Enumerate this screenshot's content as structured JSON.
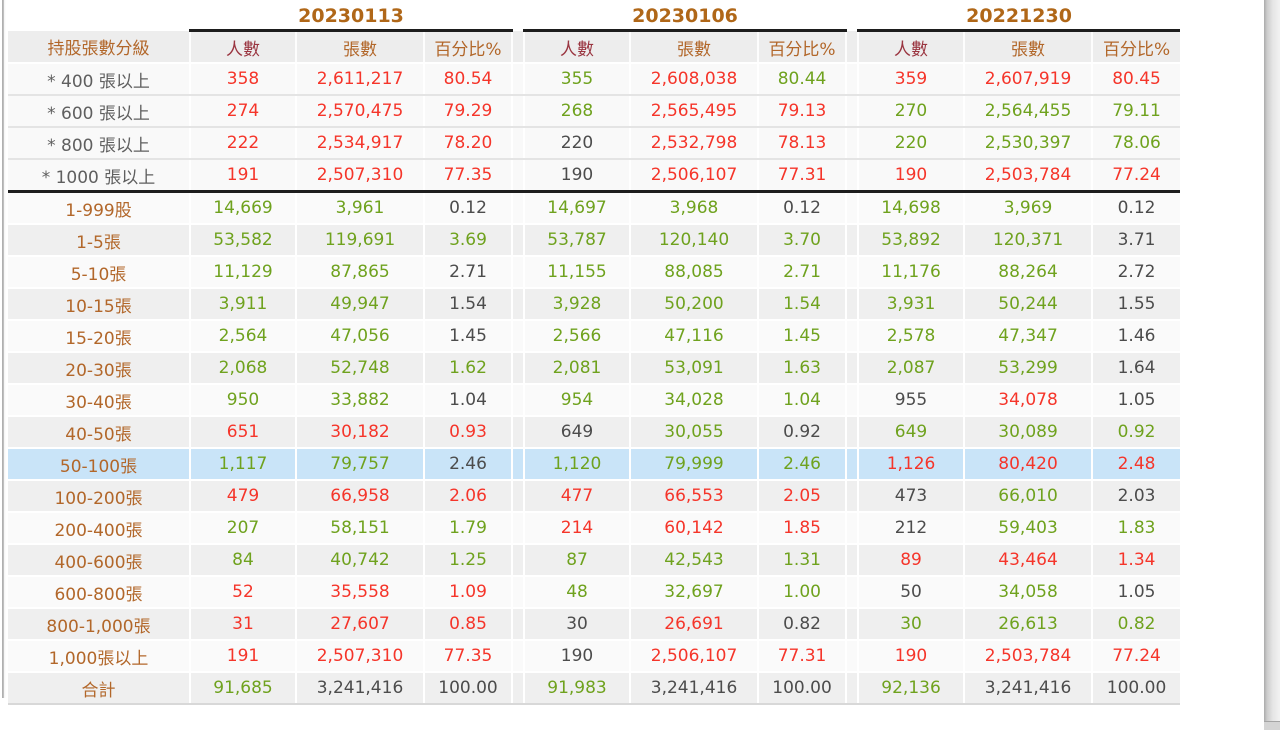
{
  "table": {
    "corner_label": "持股張數分級",
    "date_groups": [
      "20230113",
      "20230106",
      "20221230"
    ],
    "col_headers": [
      "人數",
      "張數",
      "百分比%"
    ],
    "highlighted_row": "50-100張",
    "rows": [
      {
        "label": "* 400 張以上",
        "lc": "gray",
        "bg": "top",
        "cells": [
          [
            "358",
            "r"
          ],
          [
            "2,611,217",
            "r"
          ],
          [
            "80.54",
            "r"
          ],
          [
            "355",
            "g"
          ],
          [
            "2,608,038",
            "r"
          ],
          [
            "80.44",
            "g"
          ],
          [
            "359",
            "r"
          ],
          [
            "2,607,919",
            "r"
          ],
          [
            "80.45",
            "r"
          ]
        ]
      },
      {
        "label": "* 600 張以上",
        "lc": "gray",
        "bg": "top",
        "cells": [
          [
            "274",
            "r"
          ],
          [
            "2,570,475",
            "r"
          ],
          [
            "79.29",
            "r"
          ],
          [
            "268",
            "g"
          ],
          [
            "2,565,495",
            "r"
          ],
          [
            "79.13",
            "r"
          ],
          [
            "270",
            "g"
          ],
          [
            "2,564,455",
            "g"
          ],
          [
            "79.11",
            "g"
          ]
        ]
      },
      {
        "label": "* 800 張以上",
        "lc": "gray",
        "bg": "top",
        "cells": [
          [
            "222",
            "r"
          ],
          [
            "2,534,917",
            "r"
          ],
          [
            "78.20",
            "r"
          ],
          [
            "220",
            "k"
          ],
          [
            "2,532,798",
            "r"
          ],
          [
            "78.13",
            "r"
          ],
          [
            "220",
            "g"
          ],
          [
            "2,530,397",
            "g"
          ],
          [
            "78.06",
            "g"
          ]
        ]
      },
      {
        "label": "* 1000 張以上",
        "lc": "gray",
        "bg": "top",
        "thick": true,
        "cells": [
          [
            "191",
            "r"
          ],
          [
            "2,507,310",
            "r"
          ],
          [
            "77.35",
            "r"
          ],
          [
            "190",
            "k"
          ],
          [
            "2,506,107",
            "r"
          ],
          [
            "77.31",
            "r"
          ],
          [
            "190",
            "r"
          ],
          [
            "2,503,784",
            "r"
          ],
          [
            "77.24",
            "r"
          ]
        ]
      },
      {
        "label": "1-999股",
        "lc": "brown",
        "bg": "w",
        "cells": [
          [
            "14,669",
            "g"
          ],
          [
            "3,961",
            "g"
          ],
          [
            "0.12",
            "k"
          ],
          [
            "14,697",
            "g"
          ],
          [
            "3,968",
            "g"
          ],
          [
            "0.12",
            "k"
          ],
          [
            "14,698",
            "g"
          ],
          [
            "3,969",
            "g"
          ],
          [
            "0.12",
            "k"
          ]
        ]
      },
      {
        "label": "1-5張",
        "lc": "brown",
        "bg": "g",
        "cells": [
          [
            "53,582",
            "g"
          ],
          [
            "119,691",
            "g"
          ],
          [
            "3.69",
            "g"
          ],
          [
            "53,787",
            "g"
          ],
          [
            "120,140",
            "g"
          ],
          [
            "3.70",
            "g"
          ],
          [
            "53,892",
            "g"
          ],
          [
            "120,371",
            "g"
          ],
          [
            "3.71",
            "k"
          ]
        ]
      },
      {
        "label": "5-10張",
        "lc": "brown",
        "bg": "w",
        "cells": [
          [
            "11,129",
            "g"
          ],
          [
            "87,865",
            "g"
          ],
          [
            "2.71",
            "k"
          ],
          [
            "11,155",
            "g"
          ],
          [
            "88,085",
            "g"
          ],
          [
            "2.71",
            "g"
          ],
          [
            "11,176",
            "g"
          ],
          [
            "88,264",
            "g"
          ],
          [
            "2.72",
            "k"
          ]
        ]
      },
      {
        "label": "10-15張",
        "lc": "brown",
        "bg": "g",
        "cells": [
          [
            "3,911",
            "g"
          ],
          [
            "49,947",
            "g"
          ],
          [
            "1.54",
            "k"
          ],
          [
            "3,928",
            "g"
          ],
          [
            "50,200",
            "g"
          ],
          [
            "1.54",
            "g"
          ],
          [
            "3,931",
            "g"
          ],
          [
            "50,244",
            "g"
          ],
          [
            "1.55",
            "k"
          ]
        ]
      },
      {
        "label": "15-20張",
        "lc": "brown",
        "bg": "w",
        "cells": [
          [
            "2,564",
            "g"
          ],
          [
            "47,056",
            "g"
          ],
          [
            "1.45",
            "k"
          ],
          [
            "2,566",
            "g"
          ],
          [
            "47,116",
            "g"
          ],
          [
            "1.45",
            "g"
          ],
          [
            "2,578",
            "g"
          ],
          [
            "47,347",
            "g"
          ],
          [
            "1.46",
            "k"
          ]
        ]
      },
      {
        "label": "20-30張",
        "lc": "brown",
        "bg": "g",
        "cells": [
          [
            "2,068",
            "g"
          ],
          [
            "52,748",
            "g"
          ],
          [
            "1.62",
            "g"
          ],
          [
            "2,081",
            "g"
          ],
          [
            "53,091",
            "g"
          ],
          [
            "1.63",
            "g"
          ],
          [
            "2,087",
            "g"
          ],
          [
            "53,299",
            "g"
          ],
          [
            "1.64",
            "k"
          ]
        ]
      },
      {
        "label": "30-40張",
        "lc": "brown",
        "bg": "w",
        "cells": [
          [
            "950",
            "g"
          ],
          [
            "33,882",
            "g"
          ],
          [
            "1.04",
            "k"
          ],
          [
            "954",
            "g"
          ],
          [
            "34,028",
            "g"
          ],
          [
            "1.04",
            "g"
          ],
          [
            "955",
            "k"
          ],
          [
            "34,078",
            "r"
          ],
          [
            "1.05",
            "k"
          ]
        ]
      },
      {
        "label": "40-50張",
        "lc": "brown",
        "bg": "g",
        "cells": [
          [
            "651",
            "r"
          ],
          [
            "30,182",
            "r"
          ],
          [
            "0.93",
            "r"
          ],
          [
            "649",
            "k"
          ],
          [
            "30,055",
            "g"
          ],
          [
            "0.92",
            "k"
          ],
          [
            "649",
            "g"
          ],
          [
            "30,089",
            "g"
          ],
          [
            "0.92",
            "g"
          ]
        ]
      },
      {
        "label": "50-100張",
        "lc": "brown",
        "bg": "b",
        "highlighted": true,
        "cells": [
          [
            "1,117",
            "g"
          ],
          [
            "79,757",
            "g"
          ],
          [
            "2.46",
            "k"
          ],
          [
            "1,120",
            "g"
          ],
          [
            "79,999",
            "g"
          ],
          [
            "2.46",
            "g"
          ],
          [
            "1,126",
            "r"
          ],
          [
            "80,420",
            "r"
          ],
          [
            "2.48",
            "r"
          ]
        ]
      },
      {
        "label": "100-200張",
        "lc": "brown",
        "bg": "g",
        "cells": [
          [
            "479",
            "r"
          ],
          [
            "66,958",
            "r"
          ],
          [
            "2.06",
            "r"
          ],
          [
            "477",
            "r"
          ],
          [
            "66,553",
            "r"
          ],
          [
            "2.05",
            "r"
          ],
          [
            "473",
            "k"
          ],
          [
            "66,010",
            "g"
          ],
          [
            "2.03",
            "k"
          ]
        ]
      },
      {
        "label": "200-400張",
        "lc": "brown",
        "bg": "w",
        "cells": [
          [
            "207",
            "g"
          ],
          [
            "58,151",
            "g"
          ],
          [
            "1.79",
            "g"
          ],
          [
            "214",
            "r"
          ],
          [
            "60,142",
            "r"
          ],
          [
            "1.85",
            "r"
          ],
          [
            "212",
            "k"
          ],
          [
            "59,403",
            "g"
          ],
          [
            "1.83",
            "g"
          ]
        ]
      },
      {
        "label": "400-600張",
        "lc": "brown",
        "bg": "g",
        "cells": [
          [
            "84",
            "g"
          ],
          [
            "40,742",
            "g"
          ],
          [
            "1.25",
            "g"
          ],
          [
            "87",
            "g"
          ],
          [
            "42,543",
            "g"
          ],
          [
            "1.31",
            "g"
          ],
          [
            "89",
            "r"
          ],
          [
            "43,464",
            "r"
          ],
          [
            "1.34",
            "r"
          ]
        ]
      },
      {
        "label": "600-800張",
        "lc": "brown",
        "bg": "w",
        "cells": [
          [
            "52",
            "r"
          ],
          [
            "35,558",
            "r"
          ],
          [
            "1.09",
            "r"
          ],
          [
            "48",
            "g"
          ],
          [
            "32,697",
            "g"
          ],
          [
            "1.00",
            "g"
          ],
          [
            "50",
            "k"
          ],
          [
            "34,058",
            "g"
          ],
          [
            "1.05",
            "k"
          ]
        ]
      },
      {
        "label": "800-1,000張",
        "lc": "brown",
        "bg": "g",
        "cells": [
          [
            "31",
            "r"
          ],
          [
            "27,607",
            "r"
          ],
          [
            "0.85",
            "r"
          ],
          [
            "30",
            "k"
          ],
          [
            "26,691",
            "r"
          ],
          [
            "0.82",
            "k"
          ],
          [
            "30",
            "g"
          ],
          [
            "26,613",
            "g"
          ],
          [
            "0.82",
            "g"
          ]
        ]
      },
      {
        "label": "1,000張以上",
        "lc": "brown",
        "bg": "w",
        "cells": [
          [
            "191",
            "r"
          ],
          [
            "2,507,310",
            "r"
          ],
          [
            "77.35",
            "r"
          ],
          [
            "190",
            "k"
          ],
          [
            "2,506,107",
            "r"
          ],
          [
            "77.31",
            "r"
          ],
          [
            "190",
            "r"
          ],
          [
            "2,503,784",
            "r"
          ],
          [
            "77.24",
            "r"
          ]
        ]
      },
      {
        "label": "合計",
        "lc": "brown",
        "bg": "g",
        "last": true,
        "cells": [
          [
            "91,685",
            "g"
          ],
          [
            "3,241,416",
            "k"
          ],
          [
            "100.00",
            "k"
          ],
          [
            "91,983",
            "g"
          ],
          [
            "3,241,416",
            "k"
          ],
          [
            "100.00",
            "k"
          ],
          [
            "92,136",
            "g"
          ],
          [
            "3,241,416",
            "k"
          ],
          [
            "100.00",
            "k"
          ]
        ]
      }
    ]
  },
  "colors": {
    "value_up_red": "#f5352a",
    "value_down_green": "#6fa21e",
    "value_neutral_dark": "#4c4c4c",
    "row_label_brown": "#b2672a",
    "date_header_brown": "#b06718",
    "people_header_maroon": "#9a3540",
    "header_bg": "#ededed",
    "row_white": "#fafafa",
    "row_gray": "#efefef",
    "row_highlight_blue": "#c9e4f8",
    "divider_black": "#1d1d1d"
  }
}
